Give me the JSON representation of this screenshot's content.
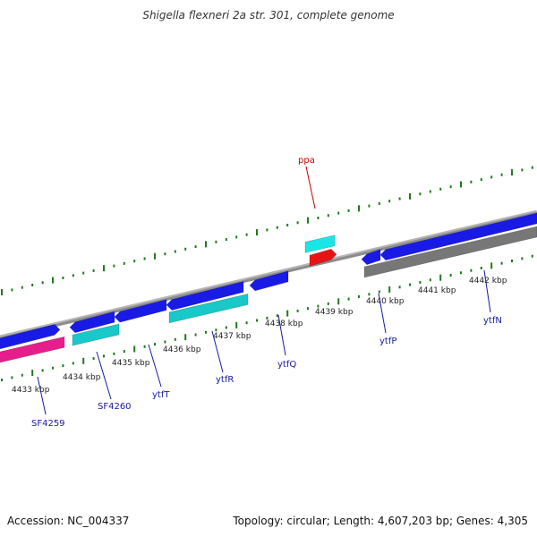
{
  "title": "Shigella flexneri 2a str. 301, complete genome",
  "footer": {
    "accession": "Accession: NC_004337",
    "stats": "Topology: circular; Length: 4,607,203 bp; Genes: 4,305"
  },
  "colors": {
    "backbone": "#8c8c8c",
    "tick": "#1e7a1e",
    "cds": "#1a1ae6",
    "pseudo": "#e61e8c",
    "rna": "#19c8c8",
    "trna": "#19e6e6",
    "highlight": "#e61414",
    "gray_feature": "#777777",
    "label_default": "#1a1aa0",
    "label_highlight": "#cc0000"
  },
  "kbp_labels": [
    "4433 kbp",
    "4434 kbp",
    "4435 kbp",
    "4436 kbp",
    "4437 kbp",
    "4438 kbp",
    "4439 kbp",
    "4440 kbp",
    "4441 kbp",
    "4442 kbp"
  ],
  "genes": [
    {
      "name": "SF4259"
    },
    {
      "name": "SF4260"
    },
    {
      "name": "ytfT"
    },
    {
      "name": "ytfR"
    },
    {
      "name": "ytfQ"
    },
    {
      "name": "ppa"
    },
    {
      "name": "ytfP"
    },
    {
      "name": "ytfN"
    }
  ]
}
